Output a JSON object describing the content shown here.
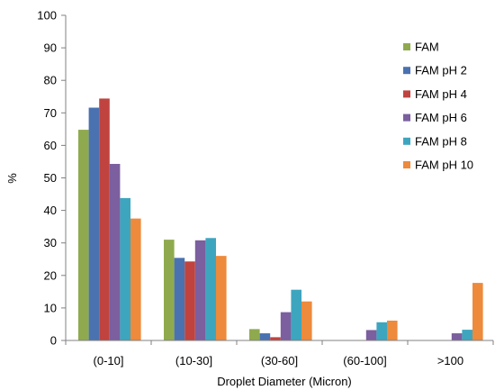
{
  "chart_data": {
    "type": "bar",
    "xlabel": "Droplet Diameter (Micron)",
    "ylabel": "%",
    "ylim": [
      0,
      100
    ],
    "yticks": [
      0,
      10,
      20,
      30,
      40,
      50,
      60,
      70,
      80,
      90,
      100
    ],
    "grid": false,
    "legend_position": "right",
    "categories": [
      "(0-10]",
      "(10-30]",
      "(30-60]",
      "(60-100]",
      ">100"
    ],
    "series": [
      {
        "name": "FAM",
        "color": "#8faa4e",
        "values": [
          64.8,
          31.0,
          3.5,
          0,
          0
        ]
      },
      {
        "name": "FAM pH 2",
        "color": "#4a72b0",
        "values": [
          71.6,
          25.4,
          2.2,
          0,
          0
        ]
      },
      {
        "name": "FAM pH 4",
        "color": "#c0433f",
        "values": [
          74.4,
          24.3,
          1.0,
          0,
          0
        ]
      },
      {
        "name": "FAM pH 6",
        "color": "#7b5f9e",
        "values": [
          54.3,
          30.8,
          8.7,
          3.2,
          2.2
        ]
      },
      {
        "name": "FAM pH 8",
        "color": "#3ea5bf",
        "values": [
          43.8,
          31.5,
          15.6,
          5.6,
          3.3
        ]
      },
      {
        "name": "FAM pH 10",
        "color": "#ed8a3c",
        "values": [
          37.5,
          26.0,
          12.0,
          6.1,
          17.7
        ]
      }
    ]
  }
}
